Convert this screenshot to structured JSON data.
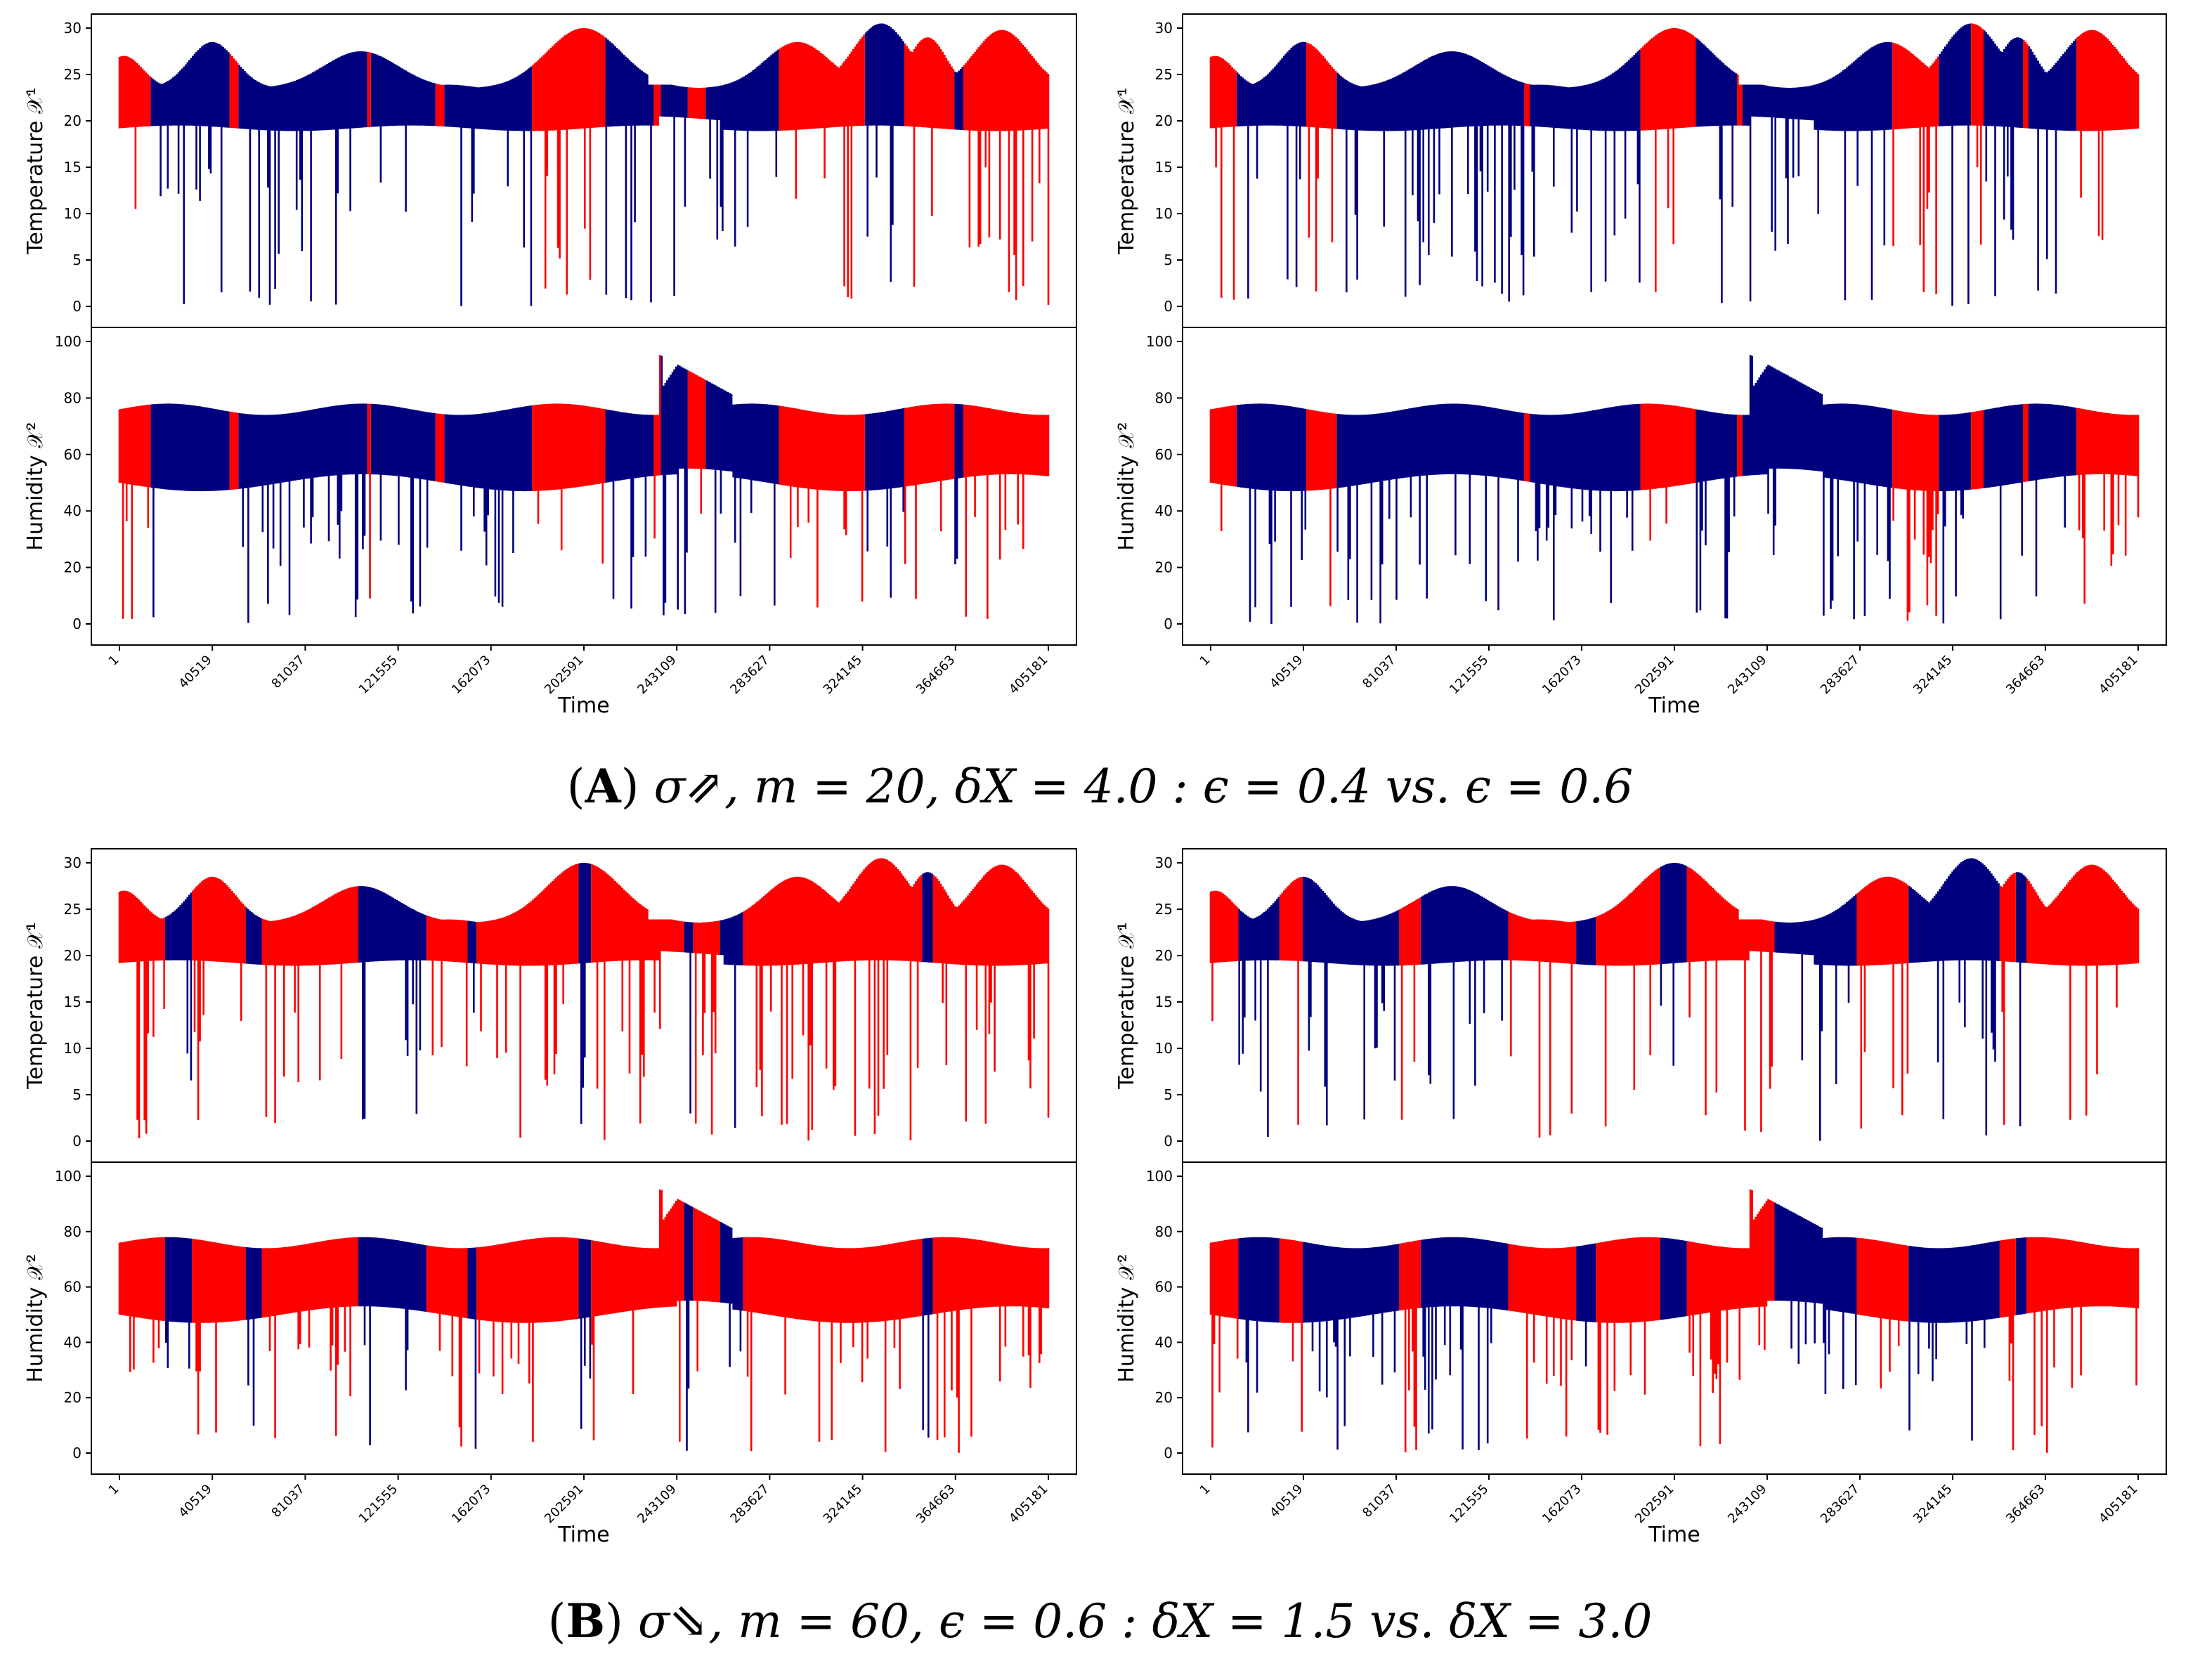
{
  "colors": {
    "normal": "#00007f",
    "highlight": "#ff0000",
    "axis": "#000000",
    "background": "#ffffff"
  },
  "captions": {
    "a": {
      "label": "A",
      "text": "σ⇗, m = 20, δX = 4.0 : ϵ = 0.4 vs. ϵ = 0.6"
    },
    "b": {
      "label": "B",
      "text": "σ⇘, m = 60, ϵ = 0.6 : δX = 1.5 vs. δX = 3.0"
    }
  },
  "chart_data": [
    {
      "id": "A-left",
      "type": "line",
      "xlabel": "Time",
      "xticks": [
        "1",
        "40519",
        "81037",
        "121555",
        "162073",
        "202591",
        "243109",
        "283627",
        "324145",
        "364663",
        "405181"
      ],
      "xlim": [
        1,
        405181
      ],
      "panels": [
        {
          "ylabel": "Temperature 𝒳¹",
          "ylim": [
            0,
            30
          ],
          "yticks": [
            0,
            5,
            10,
            15,
            20,
            25,
            30
          ]
        },
        {
          "ylabel": "Humidity 𝒳²",
          "ylim": [
            0,
            100
          ],
          "yticks": [
            0,
            20,
            40,
            60,
            80,
            100
          ]
        }
      ],
      "series": [
        {
          "name": "normal",
          "color": "#00007f"
        },
        {
          "name": "highlighted",
          "color": "#ff0000",
          "segments": [
            [
              1,
              14000
            ],
            [
              48000,
              52000
            ],
            [
              108000,
              110000
            ],
            [
              138000,
              142000
            ],
            [
              180000,
              212000
            ],
            [
              233000,
              236000
            ],
            [
              248000,
              256000
            ],
            [
              288000,
              325000
            ],
            [
              342000,
              356000
            ],
            [
              356000,
              364000
            ],
            [
              368000,
              405181
            ]
          ]
        }
      ]
    },
    {
      "id": "A-right",
      "type": "line",
      "xlabel": "Time",
      "xticks": [
        "1",
        "40519",
        "81037",
        "121555",
        "162073",
        "202591",
        "243109",
        "283627",
        "324145",
        "364663",
        "405181"
      ],
      "xlim": [
        1,
        405181
      ],
      "panels": [
        {
          "ylabel": "Temperature 𝒳¹",
          "ylim": [
            0,
            30
          ],
          "yticks": [
            0,
            5,
            10,
            15,
            20,
            25,
            30
          ]
        },
        {
          "ylabel": "Humidity 𝒳²",
          "ylim": [
            0,
            100
          ],
          "yticks": [
            0,
            20,
            40,
            60,
            80,
            100
          ]
        }
      ],
      "series": [
        {
          "name": "normal",
          "color": "#00007f"
        },
        {
          "name": "highlighted",
          "color": "#ff0000",
          "segments": [
            [
              1,
              11000
            ],
            [
              42000,
              55000
            ],
            [
              137000,
              139000
            ],
            [
              188000,
              212000
            ],
            [
              230000,
              232000
            ],
            [
              298000,
              318000
            ],
            [
              332000,
              338000
            ],
            [
              355000,
              357000
            ],
            [
              378000,
              405181
            ]
          ]
        }
      ]
    },
    {
      "id": "B-left",
      "type": "line",
      "xlabel": "Time",
      "xticks": [
        "1",
        "40519",
        "81037",
        "121555",
        "162073",
        "202591",
        "243109",
        "283627",
        "324145",
        "364663",
        "405181"
      ],
      "xlim": [
        1,
        405181
      ],
      "panels": [
        {
          "ylabel": "Temperature 𝒳¹",
          "ylim": [
            0,
            30
          ],
          "yticks": [
            0,
            5,
            10,
            15,
            20,
            25,
            30
          ]
        },
        {
          "ylabel": "Humidity 𝒳²",
          "ylim": [
            0,
            100
          ],
          "yticks": [
            0,
            20,
            40,
            60,
            80,
            100
          ]
        }
      ],
      "series": [
        {
          "name": "normal",
          "color": "#00007f"
        },
        {
          "name": "highlighted",
          "color": "#ff0000",
          "segments": [
            [
              1,
              20000
            ],
            [
              32000,
              55000
            ],
            [
              62000,
              104000
            ],
            [
              134000,
              152000
            ],
            [
              156000,
              200000
            ],
            [
              206000,
              246000
            ],
            [
              250000,
              262000
            ],
            [
              272000,
              350000
            ],
            [
              355000,
              405181
            ]
          ]
        }
      ]
    },
    {
      "id": "B-right",
      "type": "line",
      "xlabel": "Time",
      "xticks": [
        "1",
        "40519",
        "81037",
        "121555",
        "162073",
        "202591",
        "243109",
        "283627",
        "324145",
        "364663",
        "405181"
      ],
      "xlim": [
        1,
        405181
      ],
      "panels": [
        {
          "ylabel": "Temperature 𝒳¹",
          "ylim": [
            0,
            30
          ],
          "yticks": [
            0,
            5,
            10,
            15,
            20,
            25,
            30
          ]
        },
        {
          "ylabel": "Humidity 𝒳²",
          "ylim": [
            0,
            100
          ],
          "yticks": [
            0,
            20,
            40,
            60,
            80,
            100
          ]
        }
      ],
      "series": [
        {
          "name": "normal",
          "color": "#00007f"
        },
        {
          "name": "highlighted",
          "color": "#ff0000",
          "segments": [
            [
              1,
              12000
            ],
            [
              30000,
              40000
            ],
            [
              82000,
              92000
            ],
            [
              130000,
              160000
            ],
            [
              168000,
              196000
            ],
            [
              208000,
              246000
            ],
            [
              282000,
              305000
            ],
            [
              345000,
              352000
            ],
            [
              356000,
              405181
            ]
          ]
        }
      ]
    }
  ]
}
